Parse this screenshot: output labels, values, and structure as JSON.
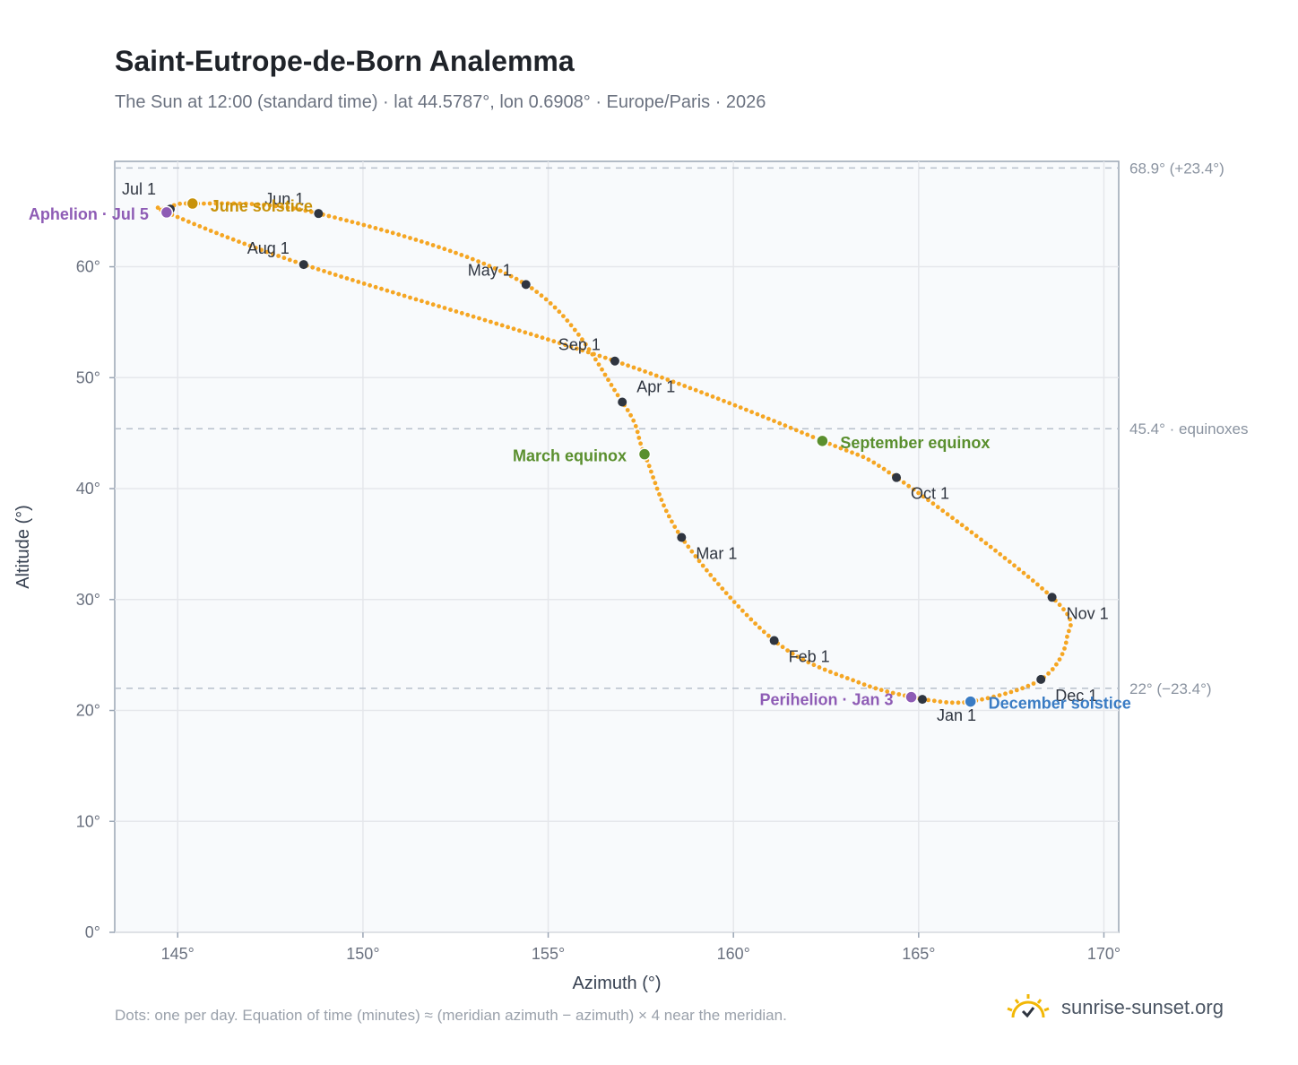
{
  "header": {
    "title": "Saint-Eutrope-de-Born Analemma",
    "subtitle": "The Sun at 12:00 (standard time) · lat 44.5787°, lon 0.6908° · Europe/Paris · 2026"
  },
  "footer": {
    "note": "Dots: one per day. Equation of time (minutes) ≈ (meridian azimuth − azimuth) × 4 near the meridian.",
    "brand": "sunrise-sunset.org",
    "brand_icon": "sun-icon"
  },
  "colors": {
    "curve": "#f5a623",
    "month_marker": "#2f3540",
    "aphelion": "#8e5cb5",
    "perihelion": "#8e5cb5",
    "june_solstice": "#c8920a",
    "december_solstice": "#3a7cc4",
    "equinox": "#5a8f2e",
    "grid": "#e5e7eb",
    "plot_bg": "#f8fafc"
  },
  "chart_data": {
    "type": "scatter",
    "xlabel": "Azimuth (°)",
    "ylabel": "Altitude (°)",
    "xlim": [
      143.3,
      170.4
    ],
    "ylim": [
      0,
      69.5
    ],
    "xticks": [
      145,
      150,
      155,
      160,
      165,
      170
    ],
    "xtick_labels": [
      "145°",
      "150°",
      "155°",
      "160°",
      "165°",
      "170°"
    ],
    "yticks": [
      0,
      10,
      20,
      30,
      40,
      50,
      60
    ],
    "ytick_labels": [
      "0°",
      "10°",
      "20°",
      "30°",
      "40°",
      "50°",
      "60°"
    ],
    "grid": true,
    "reference_lines": [
      {
        "y": 68.9,
        "label": "68.9° (+23.4°)"
      },
      {
        "y": 45.4,
        "label": "45.4° · equinoxes"
      },
      {
        "y": 22.0,
        "label": "22° (−23.4°)"
      }
    ],
    "month_markers": [
      {
        "label": "Jan 1",
        "az": 165.1,
        "alt": 21.0
      },
      {
        "label": "Feb 1",
        "az": 161.1,
        "alt": 26.3
      },
      {
        "label": "Mar 1",
        "az": 158.6,
        "alt": 35.6
      },
      {
        "label": "Apr 1",
        "az": 157.0,
        "alt": 47.8
      },
      {
        "label": "May 1",
        "az": 154.4,
        "alt": 58.4
      },
      {
        "label": "Jun 1",
        "az": 148.8,
        "alt": 64.8
      },
      {
        "label": "Jul 1",
        "az": 144.8,
        "alt": 65.2
      },
      {
        "label": "Aug 1",
        "az": 148.4,
        "alt": 60.2
      },
      {
        "label": "Sep 1",
        "az": 156.8,
        "alt": 51.5
      },
      {
        "label": "Oct 1",
        "az": 164.4,
        "alt": 41.0
      },
      {
        "label": "Nov 1",
        "az": 168.6,
        "alt": 30.2
      },
      {
        "label": "Dec 1",
        "az": 168.3,
        "alt": 22.8
      }
    ],
    "events": [
      {
        "label": "Aphelion · Jul 5",
        "az": 144.7,
        "alt": 64.9,
        "color_key": "aphelion"
      },
      {
        "label": "June solstice",
        "az": 145.4,
        "alt": 65.7,
        "color_key": "june_solstice"
      },
      {
        "label": "March equinox",
        "az": 157.6,
        "alt": 43.1,
        "color_key": "equinox"
      },
      {
        "label": "September equinox",
        "az": 162.4,
        "alt": 44.3,
        "color_key": "equinox"
      },
      {
        "label": "Perihelion · Jan 3",
        "az": 164.8,
        "alt": 21.2,
        "color_key": "perihelion"
      },
      {
        "label": "December solstice",
        "az": 166.4,
        "alt": 20.8,
        "color_key": "december_solstice"
      }
    ],
    "path_points": [
      {
        "az": 165.1,
        "alt": 21.0
      },
      {
        "az": 163.4,
        "alt": 22.5
      },
      {
        "az": 161.1,
        "alt": 26.3
      },
      {
        "az": 158.6,
        "alt": 35.6
      },
      {
        "az": 157.6,
        "alt": 43.1
      },
      {
        "az": 157.0,
        "alt": 47.8
      },
      {
        "az": 154.4,
        "alt": 58.4
      },
      {
        "az": 148.8,
        "alt": 64.8
      },
      {
        "az": 145.4,
        "alt": 65.7
      },
      {
        "az": 144.8,
        "alt": 65.2
      },
      {
        "az": 144.7,
        "alt": 64.9
      },
      {
        "az": 148.4,
        "alt": 60.2
      },
      {
        "az": 156.8,
        "alt": 51.5
      },
      {
        "az": 162.4,
        "alt": 44.3
      },
      {
        "az": 164.4,
        "alt": 41.0
      },
      {
        "az": 168.6,
        "alt": 30.2
      },
      {
        "az": 169.0,
        "alt": 26.5
      },
      {
        "az": 168.3,
        "alt": 22.8
      },
      {
        "az": 166.4,
        "alt": 20.8
      },
      {
        "az": 165.1,
        "alt": 21.0
      }
    ]
  }
}
